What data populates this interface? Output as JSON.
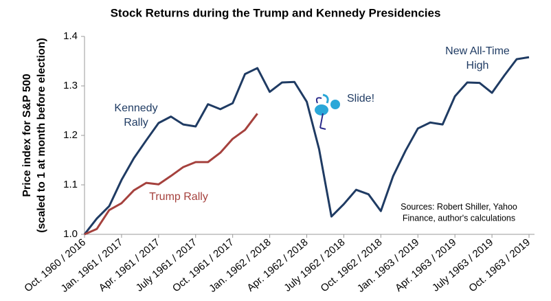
{
  "chart_data": {
    "type": "line",
    "title": "Stock Returns during the Trump and Kennedy Presidencies",
    "y_label": [
      "Price index for S&P 500",
      "(scaled to 1 at month before election)"
    ],
    "categories": [
      "Oct. 1960 / 2016",
      null,
      null,
      "Jan. 1961 / 2017",
      null,
      null,
      "Apr. 1961 / 2017",
      null,
      null,
      "July 1961 / 2017",
      null,
      null,
      "Oct. 1961 / 2017",
      null,
      null,
      "Jan. 1962 / 2018",
      null,
      null,
      "Apr. 1962 / 2018",
      null,
      null,
      "July 1962 / 2018",
      null,
      null,
      "Oct. 1962 / 2018",
      null,
      null,
      "Jan. 1963 / 2019",
      null,
      null,
      "Apr. 1963 / 2019",
      null,
      null,
      "July 1963 / 2019",
      null,
      null,
      "Oct. 1963 / 2019"
    ],
    "ylim": [
      1.0,
      1.4
    ],
    "yticks": [
      {
        "value": 1.0,
        "label": "1.0"
      },
      1.1,
      1.2,
      1.3,
      1.4
    ],
    "grid": false,
    "series": [
      {
        "name": "Kennedy",
        "color": "#1f3b63",
        "values": [
          1.0,
          1.032,
          1.057,
          1.11,
          1.154,
          1.19,
          1.225,
          1.238,
          1.222,
          1.218,
          1.263,
          1.253,
          1.265,
          1.324,
          1.336,
          1.288,
          1.307,
          1.308,
          1.268,
          1.172,
          1.036,
          1.061,
          1.09,
          1.081,
          1.047,
          1.118,
          1.169,
          1.214,
          1.226,
          1.222,
          1.279,
          1.307,
          1.306,
          1.286,
          1.321,
          1.354,
          1.358
        ]
      },
      {
        "name": "Trump",
        "color": "#a5413d",
        "values": [
          1.0,
          1.011,
          1.049,
          1.063,
          1.089,
          1.104,
          1.101,
          1.118,
          1.136,
          1.146,
          1.146,
          1.165,
          1.193,
          1.211,
          1.244,
          null,
          null,
          null,
          null,
          null,
          null,
          null,
          null,
          null,
          null,
          null,
          null,
          null,
          null,
          null,
          null,
          null,
          null,
          null,
          null,
          null,
          null
        ]
      }
    ],
    "annotations": [
      {
        "lines": [
          "Kennedy",
          "Rally"
        ],
        "color": "#1f3b63"
      },
      {
        "lines": [
          "Trump Rally"
        ],
        "color": "#a5413d"
      },
      {
        "lines": [
          "Slide!"
        ],
        "color": "#1f3b63"
      },
      {
        "lines": [
          "New All-Time",
          "High"
        ],
        "color": "#1f3b63"
      },
      {
        "lines": [
          "Sources: Robert Shiller, Yahoo",
          "Finance, author's calculations"
        ],
        "color": "#000000"
      }
    ]
  }
}
